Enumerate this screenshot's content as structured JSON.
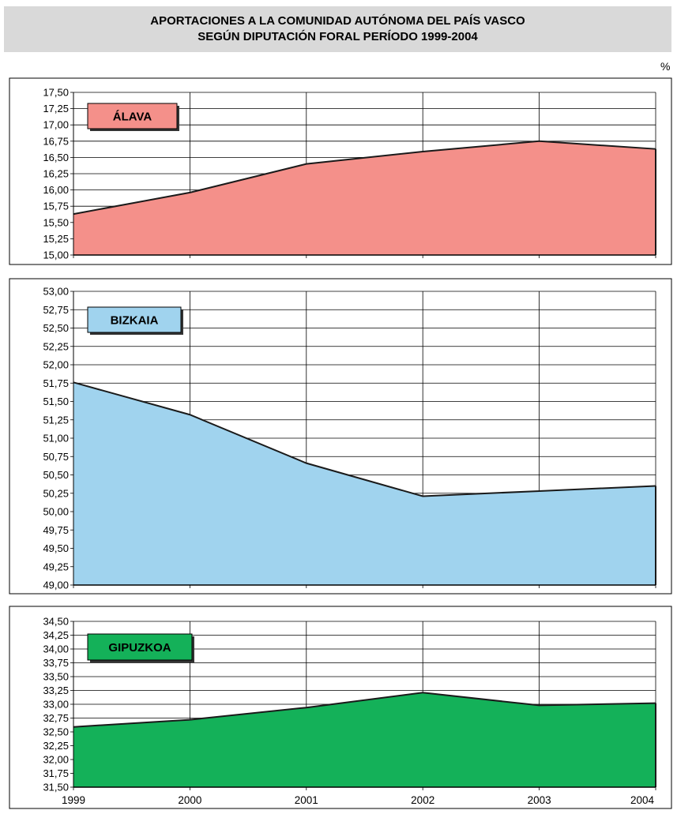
{
  "title_lines": [
    "APORTACIONES A LA COMUNIDAD AUTÓNOMA DEL PAÍS VASCO",
    "SEGÚN DIPUTACIÓN FORAL PERÍODO 1999-2004"
  ],
  "unit": "%",
  "chart_data": [
    {
      "type": "area",
      "label": "ÁLAVA",
      "categories": [
        "1999",
        "2000",
        "2001",
        "2002",
        "2003",
        "2004"
      ],
      "values": [
        15.63,
        15.96,
        16.4,
        16.59,
        16.75,
        16.63
      ],
      "ylim": [
        15.0,
        17.5
      ],
      "yticks": [
        "15,00",
        "15,25",
        "15,50",
        "15,75",
        "16,00",
        "16,25",
        "16,50",
        "16,75",
        "17,00",
        "17,25",
        "17,50"
      ],
      "fill": "#f4908a",
      "label_fill": "#f4908a",
      "show_x_labels": false
    },
    {
      "type": "area",
      "label": "BIZKAIA",
      "categories": [
        "1999",
        "2000",
        "2001",
        "2002",
        "2003",
        "2004"
      ],
      "values": [
        51.76,
        51.32,
        50.66,
        50.21,
        50.28,
        50.35
      ],
      "ylim": [
        49.0,
        53.0
      ],
      "yticks": [
        "49,00",
        "49,25",
        "49,50",
        "49,75",
        "50,00",
        "50,25",
        "50,50",
        "50,75",
        "51,00",
        "51,25",
        "51,50",
        "51,75",
        "52,00",
        "52,25",
        "52,50",
        "52,75",
        "53,00"
      ],
      "fill": "#a0d3ee",
      "label_fill": "#a0d3ee",
      "show_x_labels": false
    },
    {
      "type": "area",
      "label": "GIPUZKOA",
      "categories": [
        "1999",
        "2000",
        "2001",
        "2002",
        "2003",
        "2004"
      ],
      "values": [
        32.59,
        32.72,
        32.94,
        33.21,
        32.98,
        33.02
      ],
      "ylim": [
        31.5,
        34.5
      ],
      "yticks": [
        "31,50",
        "31,75",
        "32,00",
        "32,25",
        "32,50",
        "32,75",
        "33,00",
        "33,25",
        "33,50",
        "33,75",
        "34,00",
        "34,25",
        "34,50"
      ],
      "fill": "#14b159",
      "label_fill": "#14b159",
      "show_x_labels": true
    }
  ]
}
